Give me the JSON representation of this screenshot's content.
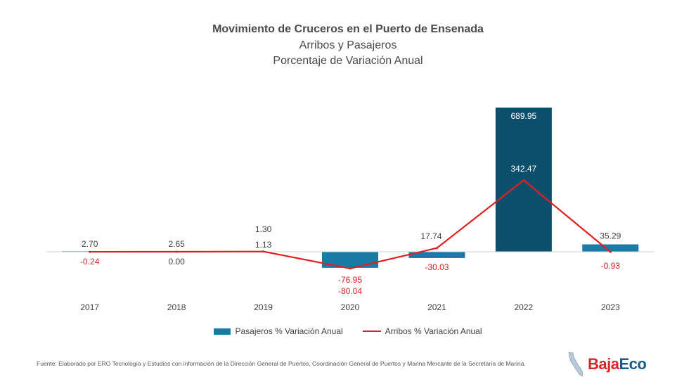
{
  "colors": {
    "bar": "#0b4f6c",
    "bar_light": "#1a7aa6",
    "line": "#e02020",
    "text": "#404040",
    "negative_text": "#e02020",
    "bar_label_on_dark": "#ffffff"
  },
  "chart_data": {
    "type": "bar",
    "title": "Movimiento de Cruceros en el Puerto de Ensenada",
    "subtitle": "Arribos y Pasajeros",
    "subtitle2": "Porcentaje de Variación Anual",
    "categories": [
      "2017",
      "2018",
      "2019",
      "2020",
      "2021",
      "2022",
      "2023"
    ],
    "series": [
      {
        "name": "Pasajeros % Variación Anual",
        "type": "bar",
        "values": [
          2.7,
          2.65,
          1.3,
          -76.95,
          -30.03,
          689.95,
          35.29
        ],
        "labels": [
          "2.70",
          "2.65",
          "1.30",
          "-76.95",
          "-30.03",
          "689.95",
          "35.29"
        ]
      },
      {
        "name": "Arribos % Variación Anual",
        "type": "line",
        "values": [
          -0.24,
          0.0,
          1.13,
          -80.04,
          17.74,
          342.47,
          -0.93
        ],
        "labels": [
          "-0.24",
          "0.00",
          "1.13",
          "-80.04",
          "17.74",
          "342.47",
          "-0.93"
        ]
      }
    ],
    "ylim": [
      -100,
      700
    ],
    "grid": false,
    "legend": "bottom"
  },
  "source": "Fuente: Elaborado por ERO Tecnología y Estudios con información de la Dirección General de Puertos, Coordinación General de Puertos y Marina Mercante de la Secretaría de Marina.",
  "logo": {
    "part1": "Baja",
    "part2": "Eco",
    "icon": "baja-california-map-icon"
  }
}
